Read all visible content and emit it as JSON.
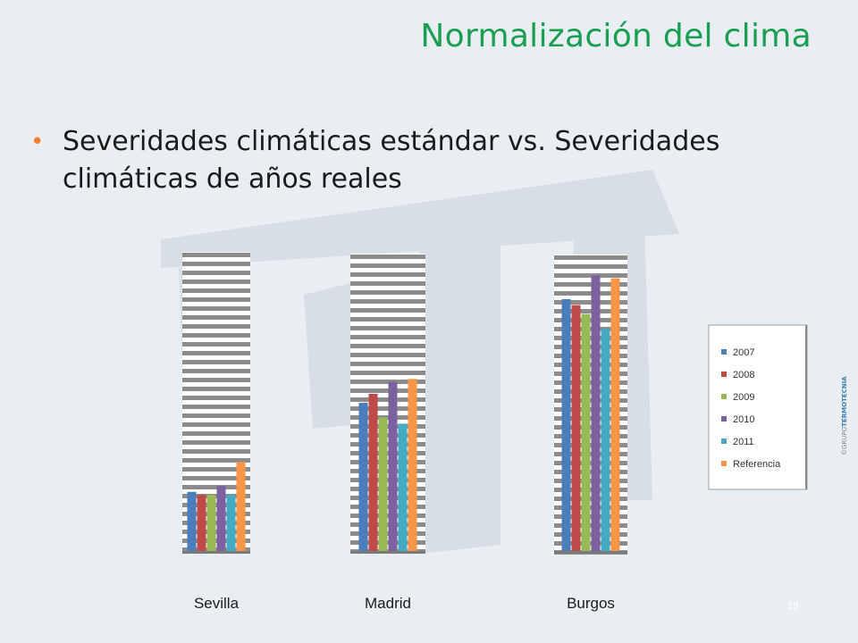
{
  "slide": {
    "title": "Normalización del clima",
    "bullet": "Severidades climáticas estándar vs. Severidades climáticas de años reales",
    "page_number": "39",
    "brand_prefix": "©GRUPO",
    "brand_name": "TERMOTECNIA"
  },
  "colors": {
    "title": "#1a9e52",
    "bullet": "#f07f2c",
    "plot_stripe": "#8c8c8c",
    "plot_background": "#ffffff"
  },
  "chart_data": {
    "type": "bar",
    "categories": [
      "Sevilla",
      "Madrid",
      "Burgos"
    ],
    "series": [
      {
        "name": "2007",
        "color": "#4a7ebb",
        "values": [
          0.2,
          0.5,
          0.85
        ]
      },
      {
        "name": "2008",
        "color": "#be4b48",
        "values": [
          0.19,
          0.53,
          0.83
        ]
      },
      {
        "name": "2009",
        "color": "#98b954",
        "values": [
          0.19,
          0.45,
          0.8
        ]
      },
      {
        "name": "2010",
        "color": "#7d60a0",
        "values": [
          0.22,
          0.57,
          0.93
        ]
      },
      {
        "name": "2011",
        "color": "#46aac5",
        "values": [
          0.19,
          0.43,
          0.75
        ]
      },
      {
        "name": "Referencia",
        "color": "#f79646",
        "values": [
          0.3,
          0.58,
          0.92
        ]
      }
    ],
    "legend": "right",
    "grid": true,
    "ylim": [
      0,
      1
    ]
  }
}
